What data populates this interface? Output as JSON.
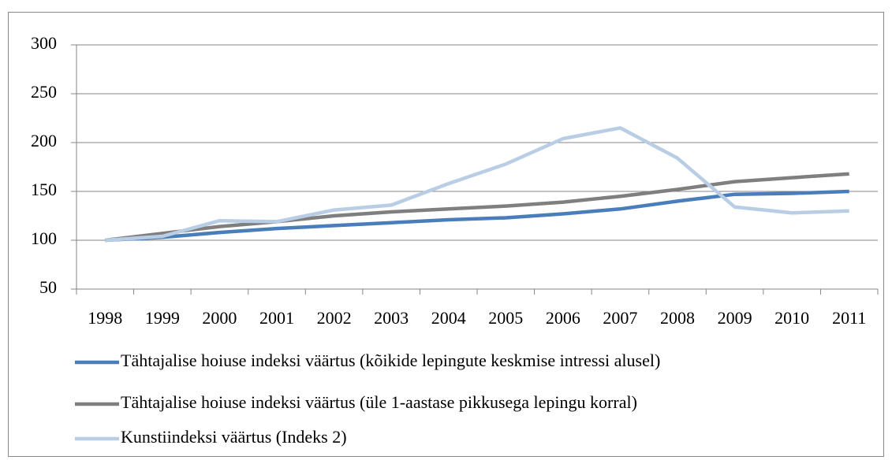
{
  "chart_data": {
    "type": "line",
    "categories": [
      "1998",
      "1999",
      "2000",
      "2001",
      "2002",
      "2003",
      "2004",
      "2005",
      "2006",
      "2007",
      "2008",
      "2009",
      "2010",
      "2011"
    ],
    "series": [
      {
        "name": "Tähtajalise hoiuse indeksi väärtus (kõikide lepingute keskmise intressi alusel)",
        "color": "#4a7ebb",
        "values": [
          100,
          103,
          108,
          112,
          115,
          118,
          121,
          123,
          127,
          132,
          140,
          147,
          148,
          150
        ]
      },
      {
        "name": "Tähtajalise hoiuse indeksi väärtus (üle 1-aastase pikkusega lepingu korral)",
        "color": "#7f7f7f",
        "values": [
          100,
          107,
          114,
          119,
          125,
          129,
          132,
          135,
          139,
          145,
          152,
          160,
          164,
          168
        ]
      },
      {
        "name": "Kunstiindeksi väärtus (Indeks 2)",
        "color": "#b9cde5",
        "values": [
          100,
          104,
          120,
          119,
          131,
          136,
          158,
          178,
          204,
          215,
          184,
          134,
          128,
          130
        ]
      }
    ],
    "ylim": [
      50,
      300
    ],
    "yticks": [
      50,
      100,
      150,
      200,
      250,
      300
    ],
    "grid": true,
    "legend": "bottom"
  }
}
